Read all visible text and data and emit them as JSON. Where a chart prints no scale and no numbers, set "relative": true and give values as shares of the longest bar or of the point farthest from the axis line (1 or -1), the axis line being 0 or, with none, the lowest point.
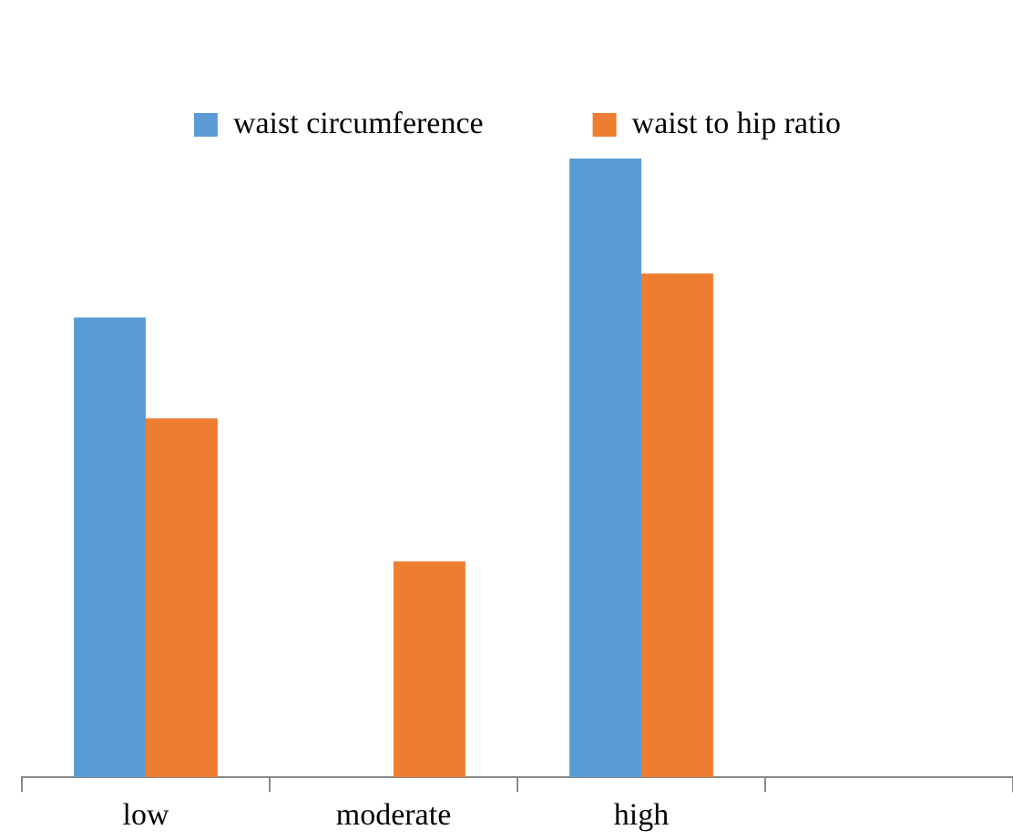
{
  "chart_data": {
    "type": "bar",
    "relative": true,
    "categories": [
      "low",
      "moderate",
      "high",
      null
    ],
    "series": [
      {
        "name": "waist circumference",
        "color": "#5b9bd5",
        "values": [
          0.743,
          0,
          1,
          null
        ]
      },
      {
        "name": "waist to hip ratio",
        "color": "#ed7d31",
        "values": [
          0.58,
          0.349,
          0.814,
          null
        ]
      }
    ],
    "legend": "top",
    "grid": false
  }
}
